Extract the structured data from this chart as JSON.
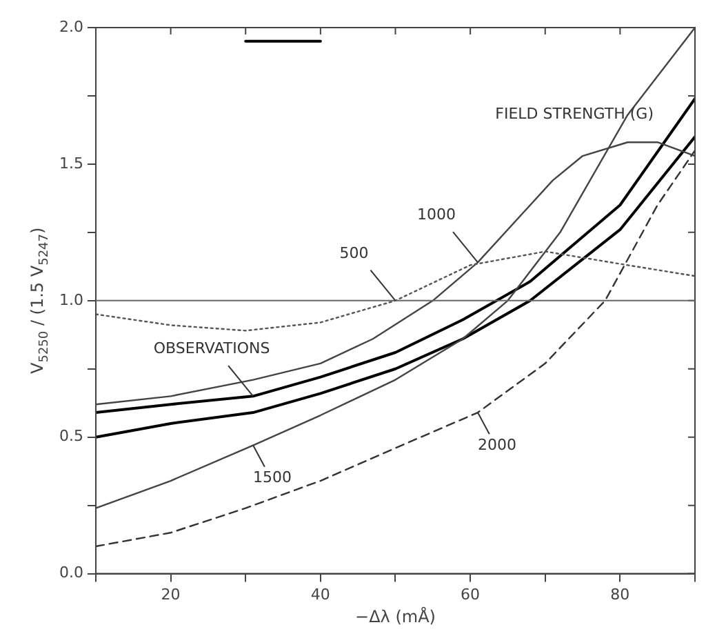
{
  "chart_data": {
    "type": "line",
    "xlabel": "−Δλ (mÅ)",
    "ylabel": "V$_{5250}$ / (1.5 V$_{5247}$)",
    "xlim": [
      10,
      90
    ],
    "xticks": [
      {
        "value": 10,
        "label": null
      },
      20,
      {
        "value": 30,
        "label": null
      },
      40,
      {
        "value": 50,
        "label": null
      },
      60,
      {
        "value": 70,
        "label": null
      },
      80,
      {
        "value": 90,
        "label": null
      }
    ],
    "ylim": [
      0,
      2
    ],
    "yticks": [
      "0.0",
      {
        "value": 0.25,
        "label": null
      },
      {
        "value": 0.5,
        "label": "0.5"
      },
      {
        "value": 0.75,
        "label": null
      },
      {
        "value": 1,
        "label": "1.0"
      },
      {
        "value": 1.25,
        "label": null
      },
      {
        "value": 1.5,
        "label": "1.5"
      },
      {
        "value": 1.75,
        "label": null
      },
      {
        "value": 2,
        "label": "2.0"
      }
    ],
    "grid": false,
    "legend": false,
    "marker": "none",
    "series": [
      {
        "color": "#555555",
        "line_style": "dotted",
        "x": [
          10,
          20,
          30,
          40,
          50,
          60,
          70,
          81,
          90
        ],
        "values": [
          0.95,
          0.91,
          0.89,
          0.92,
          1.0,
          1.13,
          1.18,
          1.13,
          1.09
        ]
      },
      {
        "color": "#444444",
        "line_style": "solid",
        "x": [
          10,
          20,
          31,
          40,
          47,
          55,
          61,
          71,
          75,
          81,
          85,
          90
        ],
        "values": [
          0.62,
          0.65,
          0.71,
          0.77,
          0.86,
          1.0,
          1.14,
          1.44,
          1.53,
          1.58,
          1.58,
          1.53
        ]
      },
      {
        "color": "#444444",
        "line_style": "solid",
        "x": [
          10,
          20,
          31,
          40,
          50,
          59,
          65,
          72,
          81,
          90
        ],
        "values": [
          0.24,
          0.34,
          0.47,
          0.58,
          0.71,
          0.86,
          1.0,
          1.25,
          1.68,
          2.0
        ]
      },
      {
        "color": "#333333",
        "line_style": "dashed",
        "x": [
          10,
          20,
          30,
          40,
          50,
          61,
          70,
          78,
          85,
          90
        ],
        "values": [
          0.1,
          0.15,
          0.24,
          0.34,
          0.46,
          0.59,
          0.77,
          1.0,
          1.35,
          1.55
        ]
      },
      {
        "color": "#000000",
        "line_style": "solid",
        "x": [
          10,
          20,
          31,
          40,
          50,
          59,
          68,
          80,
          90
        ],
        "values": [
          0.59,
          0.62,
          0.65,
          0.72,
          0.81,
          0.93,
          1.07,
          1.35,
          1.74
        ]
      },
      {
        "color": "#000000",
        "line_style": "solid",
        "x": [
          10,
          20,
          31,
          40,
          50,
          59,
          68,
          80,
          90
        ],
        "values": [
          0.5,
          0.55,
          0.59,
          0.66,
          0.75,
          0.86,
          1.0,
          1.26,
          1.6
        ]
      },
      {
        "color": "#000000",
        "line_style": "solid",
        "x": [
          30,
          40
        ],
        "values": [
          1.95,
          1.95
        ]
      }
    ],
    "ref_lines": [
      {
        "axis": "y",
        "value": 1.0,
        "color": "#666666"
      }
    ],
    "annotations": [
      "FIELD STRENGTH (G)",
      {
        "text": "1000",
        "x": 61,
        "y": 1.14
      },
      {
        "text": "500",
        "x": 50,
        "y": 1.0
      },
      {
        "text": "OBSERVATIONS",
        "x": 31,
        "y": 0.65
      },
      {
        "text": "1500",
        "x": 31,
        "y": 0.47
      },
      {
        "text": "2000",
        "x": 61,
        "y": 0.59
      }
    ]
  }
}
